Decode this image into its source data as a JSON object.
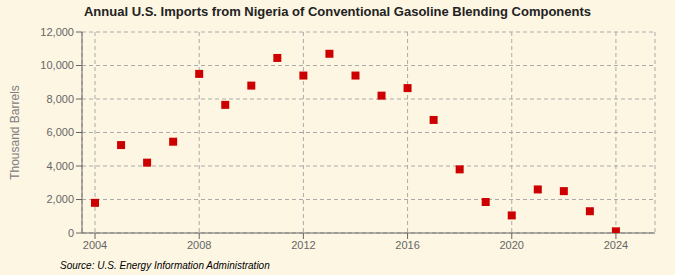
{
  "chart_data": {
    "type": "scatter",
    "title": "Annual U.S. Imports from Nigeria of Conventional Gasoline Blending Components",
    "y_label": "Thousand Barrels",
    "annotations": [
      "Source: U.S. Energy Information Administration"
    ],
    "x": [
      2004,
      2005,
      2006,
      2007,
      2008,
      2009,
      2010,
      2011,
      2012,
      2013,
      2014,
      2015,
      2016,
      2017,
      2018,
      2019,
      2020,
      2021,
      2022,
      2023,
      2024
    ],
    "values": [
      1800,
      5250,
      4200,
      5450,
      9500,
      7650,
      8800,
      10450,
      9400,
      10700,
      9400,
      8200,
      8650,
      6750,
      3800,
      1850,
      1050,
      2600,
      2500,
      1300,
      100
    ],
    "color": "#cc0000",
    "marker": "square",
    "xlim": [
      2003.5,
      2025.5
    ],
    "xticks": [
      2004,
      2008,
      2012,
      2016,
      2020,
      2024
    ],
    "ylim": [
      0,
      12000
    ],
    "yticks": [
      0,
      {
        "value": 2000,
        "label": "2,000"
      },
      {
        "value": 4000,
        "label": "4,000"
      },
      {
        "value": 6000,
        "label": "6,000"
      },
      {
        "value": 8000,
        "label": "8,000"
      },
      {
        "value": 10000,
        "label": "10,000"
      },
      {
        "value": 12000,
        "label": "12,000"
      }
    ],
    "grid": true
  }
}
